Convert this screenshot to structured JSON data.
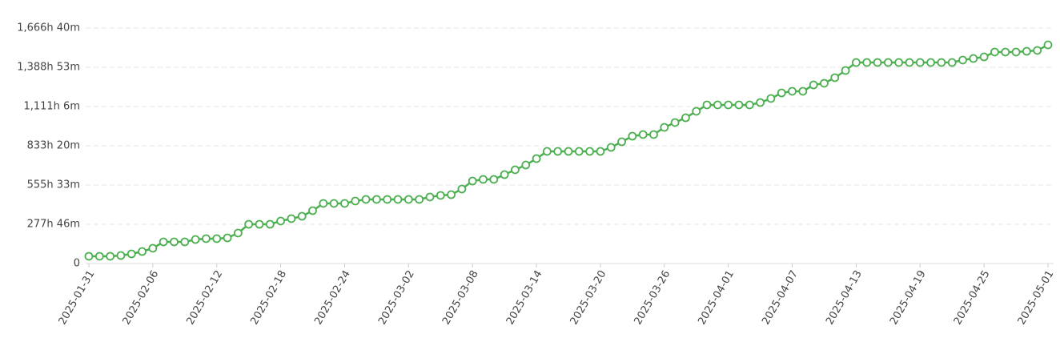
{
  "chart_data": {
    "type": "line",
    "x": [
      "2025-01-31",
      "2025-02-01",
      "2025-02-02",
      "2025-02-03",
      "2025-02-04",
      "2025-02-05",
      "2025-02-06",
      "2025-02-07",
      "2025-02-08",
      "2025-02-09",
      "2025-02-10",
      "2025-02-11",
      "2025-02-12",
      "2025-02-13",
      "2025-02-14",
      "2025-02-15",
      "2025-02-16",
      "2025-02-17",
      "2025-02-18",
      "2025-02-19",
      "2025-02-20",
      "2025-02-21",
      "2025-02-22",
      "2025-02-23",
      "2025-02-24",
      "2025-02-25",
      "2025-02-26",
      "2025-02-27",
      "2025-02-28",
      "2025-03-01",
      "2025-03-02",
      "2025-03-03",
      "2025-03-04",
      "2025-03-05",
      "2025-03-06",
      "2025-03-07",
      "2025-03-08",
      "2025-03-09",
      "2025-03-10",
      "2025-03-11",
      "2025-03-12",
      "2025-03-13",
      "2025-03-14",
      "2025-03-15",
      "2025-03-16",
      "2025-03-17",
      "2025-03-18",
      "2025-03-19",
      "2025-03-20",
      "2025-03-21",
      "2025-03-22",
      "2025-03-23",
      "2025-03-24",
      "2025-03-25",
      "2025-03-26",
      "2025-03-27",
      "2025-03-28",
      "2025-03-29",
      "2025-03-30",
      "2025-03-31",
      "2025-04-01",
      "2025-04-02",
      "2025-04-03",
      "2025-04-04",
      "2025-04-05",
      "2025-04-06",
      "2025-04-07",
      "2025-04-08",
      "2025-04-09",
      "2025-04-10",
      "2025-04-11",
      "2025-04-12",
      "2025-04-13",
      "2025-04-14",
      "2025-04-15",
      "2025-04-16",
      "2025-04-17",
      "2025-04-18",
      "2025-04-19",
      "2025-04-20",
      "2025-04-21",
      "2025-04-22",
      "2025-04-23",
      "2025-04-24",
      "2025-04-25",
      "2025-04-26",
      "2025-04-27",
      "2025-04-28",
      "2025-04-29",
      "2025-04-30",
      "2025-05-01"
    ],
    "series": [
      {
        "color": "#4caf50",
        "values": [
          184000,
          184000,
          184000,
          204000,
          245000,
          306000,
          388000,
          551000,
          551000,
          551000,
          612000,
          633000,
          633000,
          653000,
          776000,
          1000000,
          1000000,
          1000000,
          1082000,
          1143000,
          1204000,
          1347000,
          1531000,
          1531000,
          1531000,
          1592000,
          1633000,
          1633000,
          1633000,
          1633000,
          1633000,
          1633000,
          1694000,
          1735000,
          1755000,
          1898000,
          2102000,
          2143000,
          2143000,
          2265000,
          2388000,
          2510000,
          2673000,
          2857000,
          2857000,
          2857000,
          2857000,
          2857000,
          2857000,
          2959000,
          3102000,
          3245000,
          3286000,
          3286000,
          3469000,
          3592000,
          3714000,
          3878000,
          4041000,
          4041000,
          4041000,
          4041000,
          4041000,
          4102000,
          4204000,
          4347000,
          4388000,
          4388000,
          4551000,
          4592000,
          4735000,
          4918000,
          5122000,
          5122000,
          5122000,
          5122000,
          5122000,
          5122000,
          5122000,
          5122000,
          5122000,
          5122000,
          5184000,
          5224000,
          5265000,
          5388000,
          5388000,
          5388000,
          5408000,
          5429000,
          5571000
        ]
      }
    ],
    "xlim": [
      "2025-01-31",
      "2025-05-01"
    ],
    "xticks": [
      "2025-01-31",
      "2025-02-06",
      "2025-02-12",
      "2025-02-18",
      "2025-02-24",
      "2025-03-02",
      "2025-03-08",
      "2025-03-14",
      "2025-03-20",
      "2025-03-26",
      "2025-04-01",
      "2025-04-07",
      "2025-04-13",
      "2025-04-19",
      "2025-04-25",
      "2025-05-01"
    ],
    "ylim": [
      0,
      6000000
    ],
    "yticks": [
      0,
      {
        "value": 1000000,
        "label": "277h 46m"
      },
      {
        "value": 2000000,
        "label": "555h 33m"
      },
      {
        "value": 3000000,
        "label": "833h 20m"
      },
      {
        "value": 4000000,
        "label": "1,111h 6m"
      },
      {
        "value": 5000000,
        "label": "1,388h 53m"
      },
      {
        "value": 6000000,
        "label": "1,666h 40m"
      }
    ],
    "grid": true
  }
}
